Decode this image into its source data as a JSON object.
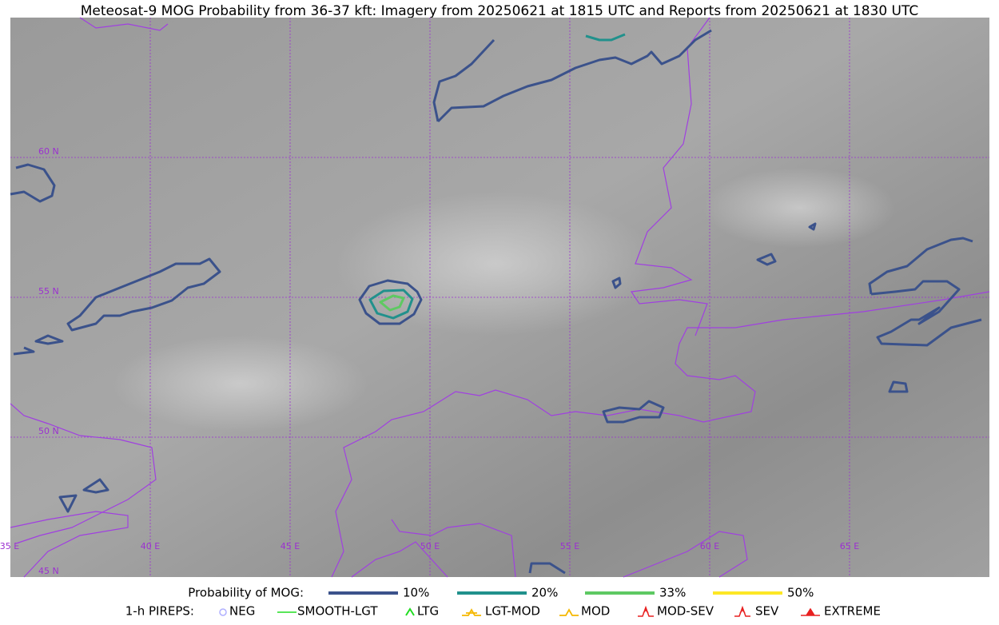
{
  "title": "Meteosat-9 MOG Probability from 36-37 kft: Imagery from 20250621 at 1815 UTC and Reports from 20250621 at 1830 UTC",
  "map": {
    "lat_labels": [
      "60 N",
      "55 N",
      "50 N",
      "45 N"
    ],
    "lon_labels": [
      "35 E",
      "40 E",
      "45 E",
      "50 E",
      "55 E",
      "60 E",
      "65 E"
    ]
  },
  "legend": {
    "probability": {
      "label": "Probability of MOG:",
      "items": [
        {
          "label": "10%",
          "color": "#3b528b"
        },
        {
          "label": "20%",
          "color": "#21918c"
        },
        {
          "label": "33%",
          "color": "#5ec962"
        },
        {
          "label": "50%",
          "color": "#fde725"
        }
      ]
    },
    "pireps": {
      "label": "1-h PIREPS:",
      "items": [
        {
          "label": "NEG",
          "color": "#b0b0ff"
        },
        {
          "label": "SMOOTH-LGT",
          "color": "#22dd22"
        },
        {
          "label": "LTG",
          "color": "#22dd22"
        },
        {
          "label": "LGT-MOD",
          "color": "#f5b800"
        },
        {
          "label": "MOD",
          "color": "#f5b800"
        },
        {
          "label": "MOD-SEV",
          "color": "#e82020"
        },
        {
          "label": "SEV",
          "color": "#e82020"
        },
        {
          "label": "EXTREME",
          "color": "#e82020"
        }
      ]
    }
  }
}
